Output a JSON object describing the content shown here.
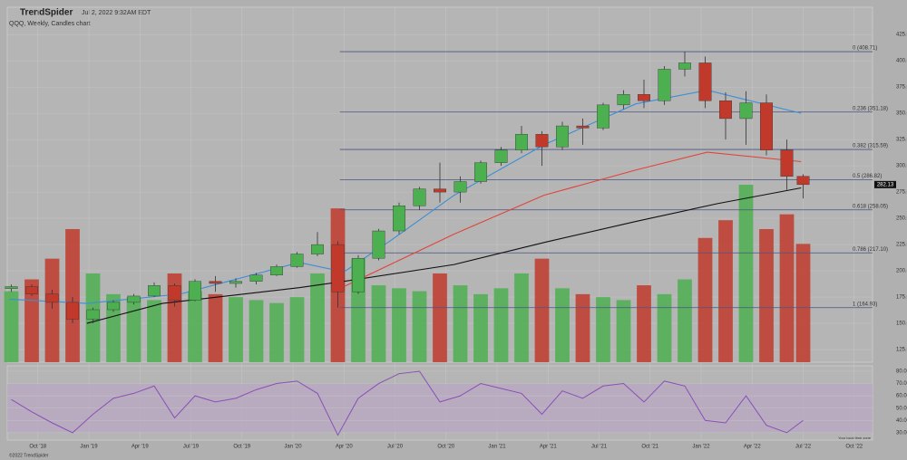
{
  "chart_data": {
    "type": "candlestick",
    "brand": "TrendSpider",
    "timestamp": "Jul 2, 2022 9:32AM EDT",
    "title": "QQQ, Weekly, Candles chart",
    "copyright": "©2022 TrendSpider",
    "timezone_note": "Your local time zone",
    "x": [
      2018.62,
      2018.72,
      2018.82,
      2018.92,
      2019.02,
      2019.12,
      2019.22,
      2019.32,
      2019.42,
      2019.52,
      2019.62,
      2019.72,
      2019.82,
      2019.92,
      2020.02,
      2020.12,
      2020.22,
      2020.32,
      2020.42,
      2020.52,
      2020.62,
      2020.72,
      2020.82,
      2020.92,
      2021.02,
      2021.12,
      2021.22,
      2021.32,
      2021.42,
      2021.52,
      2021.62,
      2021.72,
      2021.82,
      2021.92,
      2022.02,
      2022.12,
      2022.22,
      2022.32,
      2022.42,
      2022.5
    ],
    "open": [
      183,
      185,
      178,
      170,
      154,
      163,
      170,
      176,
      186,
      172,
      190,
      188,
      190,
      196,
      204,
      216,
      225,
      180,
      212,
      238,
      262,
      278,
      275,
      285,
      303,
      315,
      330,
      318,
      338,
      336,
      358,
      368,
      362,
      392,
      398,
      362,
      345,
      360,
      315,
      290
    ],
    "high": [
      187,
      187,
      182,
      175,
      165,
      172,
      178,
      189,
      188,
      192,
      195,
      193,
      198,
      206,
      218,
      237,
      228,
      215,
      240,
      265,
      280,
      303,
      290,
      305,
      318,
      338,
      333,
      342,
      345,
      360,
      372,
      382,
      395,
      408.71,
      404,
      370,
      371,
      368,
      325,
      292
    ],
    "low": [
      180,
      176,
      164,
      150,
      150,
      161,
      168,
      175,
      166,
      171,
      180,
      184,
      187,
      195,
      203,
      214,
      165,
      178,
      210,
      235,
      258,
      265,
      265,
      283,
      300,
      312,
      300,
      315,
      320,
      334,
      354,
      355,
      358,
      385,
      355,
      325,
      320,
      310,
      277,
      269
    ],
    "close": [
      185,
      178,
      170,
      154,
      163,
      170,
      176,
      186,
      172,
      190,
      188,
      190,
      196,
      204,
      216,
      225,
      180,
      212,
      238,
      262,
      278,
      275,
      285,
      303,
      315,
      330,
      318,
      338,
      336,
      358,
      368,
      362,
      392,
      398,
      362,
      345,
      360,
      315,
      290,
      282.13
    ],
    "colors": {
      "up": "#4caf50",
      "down": "#c0392b"
    },
    "xlim": [
      2018.6,
      2022.84
    ],
    "xticks": [
      {
        "value": 2018.75,
        "label": "Oct '18"
      },
      {
        "value": 2019,
        "label": "Jan '19"
      },
      {
        "value": 2019.25,
        "label": "Apr '19"
      },
      {
        "value": 2019.5,
        "label": "Jul '19"
      },
      {
        "value": 2019.75,
        "label": "Oct '19"
      },
      {
        "value": 2020,
        "label": "Jan '20"
      },
      {
        "value": 2020.25,
        "label": "Apr '20"
      },
      {
        "value": 2020.5,
        "label": "Jul '20"
      },
      {
        "value": 2020.75,
        "label": "Oct '20"
      },
      {
        "value": 2021,
        "label": "Jan '21"
      },
      {
        "value": 2021.25,
        "label": "Apr '21"
      },
      {
        "value": 2021.5,
        "label": "Jul '21"
      },
      {
        "value": 2021.75,
        "label": "Oct '21"
      },
      {
        "value": 2022,
        "label": "Jan '22"
      },
      {
        "value": 2022.25,
        "label": "Apr '22"
      },
      {
        "value": 2022.5,
        "label": "Jul '22"
      },
      {
        "value": 2022.75,
        "label": "Oct '22"
      }
    ],
    "ylim": [
      113,
      451
    ],
    "yticks": [
      {
        "value": 125,
        "label": "125.00"
      },
      {
        "value": 150,
        "label": "150.00"
      },
      {
        "value": 175,
        "label": "175.00"
      },
      {
        "value": 200,
        "label": "200.00"
      },
      {
        "value": 225,
        "label": "225.00"
      },
      {
        "value": 250,
        "label": "250.00"
      },
      {
        "value": 275,
        "label": "275.00"
      },
      {
        "value": 300,
        "label": "300.00"
      },
      {
        "value": 325,
        "label": "325.00"
      },
      {
        "value": 350,
        "label": "350.00"
      },
      {
        "value": 375,
        "label": "375.00"
      },
      {
        "value": 400,
        "label": "400.00"
      },
      {
        "value": 425,
        "label": "425.00"
      }
    ],
    "grid": true,
    "overlays": [
      {
        "color": "#111111",
        "x": [
          2018.99,
          2019.36,
          2020.03,
          2020.25,
          2020.79,
          2021.23,
          2021.68,
          2022.08,
          2022.49
        ],
        "values": [
          150,
          169,
          184,
          190,
          206,
          227,
          247,
          264,
          279
        ]
      },
      {
        "color": "#e0453a",
        "x": [
          2020.25,
          2020.79,
          2021.23,
          2021.68,
          2022.03,
          2022.49
        ],
        "values": [
          185,
          235,
          272,
          296,
          313,
          304
        ]
      },
      {
        "color": "#3a8fd6",
        "x": [
          2018.61,
          2018.99,
          2019.45,
          2020.03,
          2020.25,
          2020.48,
          2020.79,
          2021.23,
          2021.68,
          2022.03,
          2022.49
        ],
        "values": [
          173,
          169,
          178,
          208,
          199,
          229,
          272,
          320,
          359,
          372,
          350
        ]
      }
    ],
    "fib": {
      "start": 2020.23,
      "levels": [
        {
          "value": 408.71,
          "label": "0 (408.71)"
        },
        {
          "value": 351.18,
          "label": "0.236 (351.18)"
        },
        {
          "value": 315.59,
          "label": "0.382 (315.59)"
        },
        {
          "value": 286.82,
          "label": "0.5 (286.82)"
        },
        {
          "value": 258.05,
          "label": "0.618 (258.05)"
        },
        {
          "value": 217.1,
          "label": "0.786 (217.10)"
        },
        {
          "value": 164.93,
          "label": "1 (164.93)"
        }
      ]
    },
    "volume": {
      "ylim": [
        0,
        1200
      ],
      "values": [
        240,
        280,
        350,
        450,
        300,
        230,
        220,
        210,
        300,
        240,
        230,
        220,
        210,
        200,
        220,
        300,
        520,
        350,
        260,
        250,
        240,
        300,
        260,
        230,
        250,
        300,
        350,
        250,
        230,
        220,
        210,
        260,
        230,
        280,
        420,
        480,
        600,
        450,
        500,
        400
      ]
    },
    "rsi": {
      "color": "#8a4fb5",
      "band": [
        30,
        70
      ],
      "ylim": [
        24,
        84.4
      ],
      "yticks": [
        {
          "value": 30,
          "label": "30.00"
        },
        {
          "value": 40,
          "label": "40.00"
        },
        {
          "value": 50,
          "label": "50.00"
        },
        {
          "value": 60,
          "label": "60.00"
        },
        {
          "value": 70,
          "label": "70.00"
        },
        {
          "value": 80,
          "label": "80.00"
        }
      ],
      "values": [
        57,
        47,
        38,
        30,
        45,
        58,
        62,
        68,
        42,
        60,
        55,
        58,
        65,
        70,
        72,
        62,
        28,
        58,
        70,
        78,
        80,
        55,
        60,
        70,
        66,
        62,
        45,
        64,
        58,
        68,
        70,
        55,
        72,
        68,
        40,
        38,
        60,
        36,
        30,
        40
      ]
    }
  }
}
